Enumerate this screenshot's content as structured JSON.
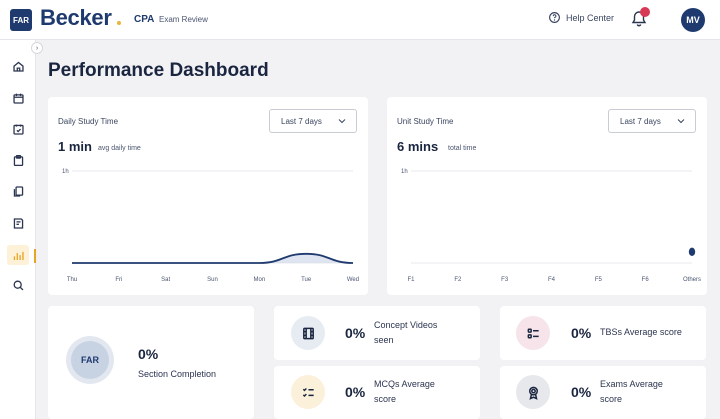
{
  "header": {
    "section_badge": "FAR",
    "brand": "Becker",
    "product": "CPA",
    "product_sub": "Exam Review",
    "help_label": "Help Center",
    "user_initials": "MV",
    "collapse_glyph": "›"
  },
  "sidebar": {
    "items": [
      {
        "icon": "home-icon"
      },
      {
        "icon": "calendar-icon"
      },
      {
        "icon": "study-plan-icon"
      },
      {
        "icon": "clipboard-icon"
      },
      {
        "icon": "flashcards-icon"
      },
      {
        "icon": "notes-icon"
      },
      {
        "icon": "performance-icon",
        "active": true
      },
      {
        "icon": "search-icon"
      }
    ],
    "accent_color": "#e8a320"
  },
  "page": {
    "title": "Performance Dashboard"
  },
  "daily_study": {
    "title": "Daily Study Time",
    "range_select": "Last 7 days",
    "metric_value": "1 min",
    "metric_label": "avg daily time",
    "y_tick": "1h",
    "x_ticks": [
      "Thu",
      "Fri",
      "Sat",
      "Sun",
      "Mon",
      "Tue",
      "Wed"
    ]
  },
  "unit_study": {
    "title": "Unit Study Time",
    "range_select": "Last 7 days",
    "metric_value": "6 mins",
    "metric_label": "total time",
    "y_tick": "1h",
    "x_ticks": [
      "F1",
      "F2",
      "F3",
      "F4",
      "F5",
      "F6",
      "Others"
    ]
  },
  "chart_data": [
    {
      "type": "area",
      "title": "Daily Study Time",
      "categories": [
        "Thu",
        "Fri",
        "Sat",
        "Sun",
        "Mon",
        "Tue",
        "Wed"
      ],
      "y_tick_labels": [
        "1h"
      ],
      "values_minutes": [
        0,
        0,
        0,
        0,
        0,
        6,
        0
      ],
      "ylim": [
        0,
        60
      ],
      "color": "#1e3a6e"
    },
    {
      "type": "scatter",
      "title": "Unit Study Time",
      "categories": [
        "F1",
        "F2",
        "F3",
        "F4",
        "F5",
        "F6",
        "Others"
      ],
      "y_tick_labels": [
        "1h"
      ],
      "values_minutes": [
        0,
        0,
        0,
        0,
        0,
        0,
        6
      ],
      "ylim": [
        0,
        60
      ],
      "color": "#1e3a6e"
    }
  ],
  "stats": {
    "section_completion": {
      "badge": "FAR",
      "value": "0%",
      "label": "Section Completion"
    },
    "concept_videos": {
      "value": "0%",
      "label_line1": "Concept Videos",
      "label_line2": "seen",
      "icon": "film-icon",
      "icon_bg": "#e7ecf3"
    },
    "tbs_average": {
      "value": "0%",
      "label": "TBSs Average score",
      "icon": "list-check-icon",
      "icon_bg": "#f7e4ea"
    },
    "mcq_average": {
      "value": "0%",
      "label_line1": "MCQs Average",
      "label_line2": "score",
      "icon": "checklist-icon",
      "icon_bg": "#fbf1da"
    },
    "exams_average": {
      "value": "0%",
      "label_line1": "Exams Average",
      "label_line2": "score",
      "icon": "award-icon",
      "icon_bg": "#e6e8ec"
    }
  }
}
